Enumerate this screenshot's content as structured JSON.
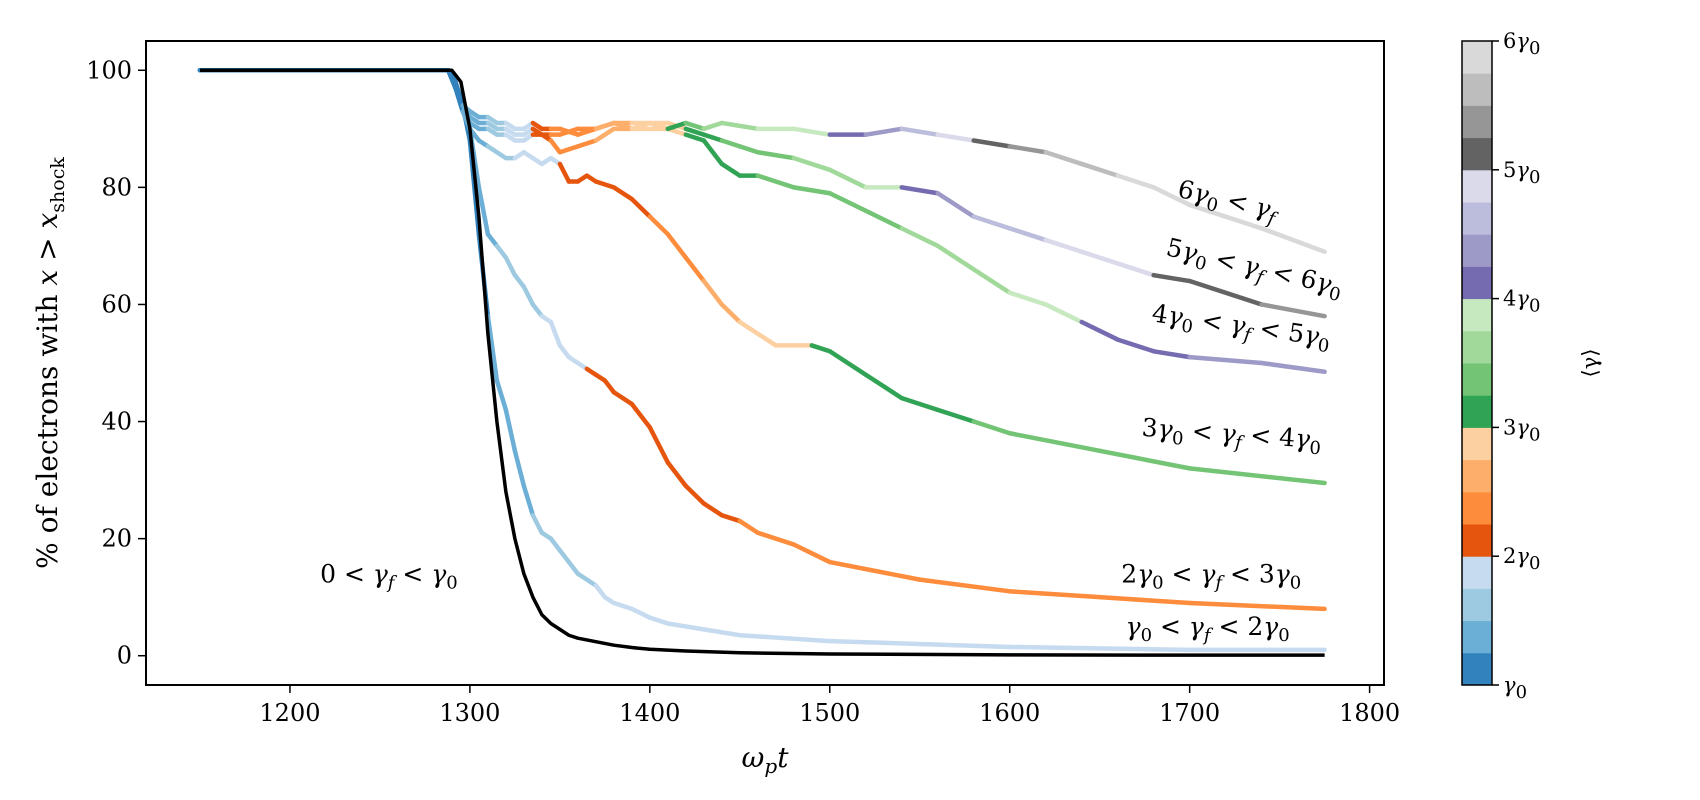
{
  "chart_data": {
    "type": "line",
    "xlabel": "ωₚt",
    "ylabel": "% of electrons with x > xₛₕₒ꜀ₖ",
    "xlim": [
      1120,
      1808
    ],
    "ylim": [
      -5,
      105
    ],
    "xticks": [
      1200,
      1300,
      1400,
      1500,
      1600,
      1700,
      1800
    ],
    "yticks": [
      0,
      20,
      40,
      60,
      80,
      100
    ],
    "grid": false,
    "colorbar": {
      "label": "⟨γ⟩",
      "range": [
        1,
        6
      ],
      "ticks": [
        {
          "value": 1,
          "label": "γ₀"
        },
        {
          "value": 2,
          "label": "2γ₀"
        },
        {
          "value": 3,
          "label": "3γ₀"
        },
        {
          "value": 4,
          "label": "4γ₀"
        },
        {
          "value": 5,
          "label": "5γ₀"
        },
        {
          "value": 6,
          "label": "6γ₀"
        }
      ],
      "colors": [
        "#3182bd",
        "#6baed6",
        "#9ecae1",
        "#c6dbef",
        "#e6550d",
        "#fd8d3c",
        "#fdae6b",
        "#fdd0a2",
        "#31a354",
        "#74c476",
        "#a1d99b",
        "#c7e9c0",
        "#756bb1",
        "#9e9ac8",
        "#bcbddc",
        "#dadaeb",
        "#636363",
        "#969696",
        "#bdbdbd",
        "#d9d9d9"
      ]
    },
    "series": [
      {
        "name": "0 < γf < γ₀",
        "color": "#000000",
        "x": [
          1150,
          1290,
          1295,
          1300,
          1305,
          1310,
          1315,
          1320,
          1325,
          1330,
          1335,
          1340,
          1345,
          1350,
          1355,
          1360,
          1370,
          1380,
          1390,
          1400,
          1420,
          1450,
          1500,
          1600,
          1700,
          1775
        ],
        "y": [
          100,
          100,
          98,
          90,
          75,
          55,
          40,
          28,
          20,
          14,
          10,
          7,
          5.5,
          4.5,
          3.5,
          3,
          2.4,
          1.8,
          1.4,
          1.1,
          0.8,
          0.5,
          0.3,
          0.15,
          0.1,
          0.1
        ]
      },
      {
        "name": "γ₀ < γf < 2γ₀",
        "x": [
          1150,
          1288,
          1292,
          1296,
          1300,
          1305,
          1310,
          1315,
          1320,
          1325,
          1330,
          1335,
          1340,
          1345,
          1350,
          1355,
          1360,
          1370,
          1375,
          1380,
          1390,
          1400,
          1410,
          1420,
          1430,
          1450,
          1500,
          1600,
          1700,
          1775
        ],
        "y": [
          100,
          100,
          98,
          94,
          88,
          72,
          58,
          47,
          42,
          35,
          29,
          24,
          21,
          20,
          18,
          16,
          14,
          12,
          10,
          9,
          8,
          6.5,
          5.5,
          5,
          4.5,
          3.5,
          2.5,
          1.5,
          1,
          1
        ],
        "gamma": [
          1.0,
          1.0,
          1.05,
          1.1,
          1.15,
          1.2,
          1.25,
          1.3,
          1.35,
          1.4,
          1.45,
          1.5,
          1.55,
          1.6,
          1.65,
          1.7,
          1.7,
          1.75,
          1.75,
          1.75,
          1.75,
          1.8,
          1.8,
          1.8,
          1.8,
          1.8,
          1.8,
          1.8,
          1.8,
          1.8
        ]
      },
      {
        "name": "2γ₀ < γf < 3γ₀",
        "x": [
          1150,
          1288,
          1292,
          1296,
          1300,
          1305,
          1310,
          1315,
          1320,
          1325,
          1330,
          1335,
          1340,
          1345,
          1350,
          1355,
          1360,
          1365,
          1370,
          1375,
          1380,
          1385,
          1390,
          1395,
          1400,
          1410,
          1420,
          1430,
          1440,
          1450,
          1460,
          1480,
          1500,
          1550,
          1600,
          1650,
          1700,
          1775
        ],
        "y": [
          100,
          100,
          98,
          94,
          90,
          80,
          72,
          70,
          68,
          65,
          63,
          60,
          58,
          57,
          53,
          51,
          50,
          49,
          48,
          47,
          45,
          44,
          43,
          41,
          39,
          33,
          29,
          26,
          24,
          23,
          21,
          19,
          16,
          13,
          11,
          10,
          9,
          8
        ],
        "gamma": [
          1.0,
          1.0,
          1.05,
          1.1,
          1.2,
          1.3,
          1.4,
          1.5,
          1.55,
          1.6,
          1.65,
          1.7,
          1.75,
          1.8,
          1.85,
          1.9,
          1.95,
          2.0,
          2.0,
          2.0,
          2.05,
          2.05,
          2.05,
          2.1,
          2.1,
          2.1,
          2.1,
          2.15,
          2.2,
          2.25,
          2.3,
          2.3,
          2.35,
          2.4,
          2.4,
          2.45,
          2.45,
          2.45
        ]
      },
      {
        "name": "3γ₀ < γf < 4γ₀",
        "x": [
          1150,
          1288,
          1292,
          1296,
          1300,
          1305,
          1310,
          1315,
          1320,
          1325,
          1330,
          1335,
          1340,
          1345,
          1350,
          1355,
          1360,
          1365,
          1370,
          1380,
          1390,
          1400,
          1410,
          1420,
          1430,
          1440,
          1450,
          1460,
          1470,
          1480,
          1490,
          1500,
          1520,
          1540,
          1560,
          1580,
          1600,
          1650,
          1700,
          1775
        ],
        "y": [
          100,
          100,
          97,
          93,
          90,
          88,
          87,
          86,
          85,
          85,
          86,
          85,
          84,
          85,
          84,
          81,
          81,
          82,
          81,
          80,
          78,
          75,
          72,
          68,
          64,
          60,
          57,
          55,
          53,
          53,
          53,
          52,
          48,
          44,
          42,
          40,
          38,
          35,
          32,
          29.5
        ],
        "gamma": [
          1.0,
          1.0,
          1.1,
          1.2,
          1.3,
          1.4,
          1.5,
          1.6,
          1.7,
          1.75,
          1.8,
          1.85,
          1.9,
          1.95,
          2.0,
          2.0,
          2.0,
          2.05,
          2.05,
          2.1,
          2.15,
          2.2,
          2.3,
          2.4,
          2.55,
          2.65,
          2.75,
          2.8,
          2.85,
          2.9,
          3.0,
          3.05,
          3.1,
          3.15,
          3.2,
          3.25,
          3.3,
          3.3,
          3.3,
          3.3
        ]
      },
      {
        "name": "4γ₀ < γf < 5γ₀",
        "x": [
          1150,
          1288,
          1292,
          1296,
          1300,
          1305,
          1310,
          1315,
          1320,
          1325,
          1330,
          1335,
          1340,
          1345,
          1350,
          1360,
          1370,
          1380,
          1390,
          1400,
          1410,
          1420,
          1430,
          1440,
          1450,
          1460,
          1480,
          1500,
          1520,
          1540,
          1560,
          1580,
          1600,
          1620,
          1640,
          1660,
          1680,
          1700,
          1740,
          1775
        ],
        "y": [
          100,
          100,
          97,
          93,
          91,
          90,
          90,
          89,
          89,
          88,
          88,
          89,
          89,
          88,
          86,
          87,
          88,
          90,
          90,
          90,
          90,
          89,
          88,
          84,
          82,
          82,
          80,
          79,
          76,
          73,
          70,
          66,
          62,
          60,
          57,
          54,
          52,
          51,
          50,
          48.5
        ],
        "gamma": [
          1.0,
          1.0,
          1.1,
          1.2,
          1.3,
          1.4,
          1.5,
          1.6,
          1.7,
          1.8,
          1.9,
          2.0,
          2.1,
          2.2,
          2.3,
          2.4,
          2.5,
          2.6,
          2.7,
          2.8,
          2.9,
          3.0,
          3.05,
          3.1,
          3.15,
          3.2,
          3.3,
          3.35,
          3.4,
          3.5,
          3.6,
          3.7,
          3.75,
          3.9,
          4.0,
          4.05,
          4.1,
          4.2,
          4.3,
          4.3
        ]
      },
      {
        "name": "5γ₀ < γf < 6γ₀",
        "x": [
          1150,
          1288,
          1292,
          1296,
          1300,
          1305,
          1310,
          1315,
          1320,
          1325,
          1330,
          1335,
          1340,
          1345,
          1350,
          1360,
          1370,
          1380,
          1390,
          1400,
          1410,
          1420,
          1430,
          1440,
          1450,
          1460,
          1480,
          1500,
          1520,
          1540,
          1560,
          1580,
          1600,
          1620,
          1640,
          1660,
          1680,
          1700,
          1740,
          1775
        ],
        "y": [
          100,
          100,
          97,
          94,
          92,
          91,
          91,
          90,
          90,
          89,
          89,
          90,
          89,
          89,
          89,
          90,
          90,
          91,
          91,
          91,
          91,
          90,
          89,
          88,
          87,
          86,
          85,
          83,
          80,
          80,
          79,
          75,
          73,
          71,
          69,
          67,
          65,
          64,
          60,
          58
        ],
        "gamma": [
          1.0,
          1.0,
          1.1,
          1.2,
          1.3,
          1.4,
          1.5,
          1.6,
          1.7,
          1.8,
          1.9,
          2.0,
          2.1,
          2.2,
          2.3,
          2.4,
          2.5,
          2.6,
          2.7,
          2.8,
          2.9,
          3.0,
          3.1,
          3.2,
          3.3,
          3.4,
          3.5,
          3.6,
          3.7,
          4.1,
          4.3,
          4.5,
          4.6,
          4.7,
          4.8,
          4.9,
          5.0,
          5.1,
          5.3,
          5.5
        ]
      },
      {
        "name": "6γ₀ < γf",
        "x": [
          1150,
          1288,
          1292,
          1296,
          1300,
          1305,
          1310,
          1315,
          1320,
          1325,
          1330,
          1335,
          1340,
          1345,
          1350,
          1360,
          1370,
          1380,
          1390,
          1400,
          1410,
          1420,
          1430,
          1440,
          1460,
          1480,
          1500,
          1520,
          1540,
          1560,
          1580,
          1600,
          1620,
          1640,
          1660,
          1680,
          1700,
          1740,
          1775
        ],
        "y": [
          100,
          100,
          97,
          94,
          93,
          92,
          92,
          91,
          91,
          90,
          90,
          91,
          90,
          90,
          90,
          89,
          90,
          91,
          90,
          91,
          90,
          91,
          90,
          91,
          90,
          90,
          89,
          89,
          90,
          89,
          88,
          87,
          86,
          84,
          82,
          80,
          77,
          73,
          69
        ],
        "gamma": [
          1.0,
          1.0,
          1.1,
          1.2,
          1.3,
          1.4,
          1.5,
          1.6,
          1.7,
          1.8,
          1.9,
          2.0,
          2.1,
          2.2,
          2.3,
          2.4,
          2.5,
          2.6,
          2.7,
          2.8,
          3.0,
          3.2,
          3.4,
          3.6,
          3.7,
          3.8,
          4.1,
          4.3,
          4.4,
          4.6,
          5.1,
          5.2,
          5.4,
          5.6,
          5.7,
          5.8,
          5.85,
          5.9,
          5.9
        ]
      }
    ],
    "annotations": [
      {
        "text": "0 < γf < γ₀",
        "x": 1255,
        "y": 12.5,
        "rotate": 0
      },
      {
        "text": "γ₀ < γf < 2γ₀",
        "x": 1710,
        "y": 3.5,
        "rotate": 0
      },
      {
        "text": "2γ₀ < γf < 3γ₀",
        "x": 1712,
        "y": 12.5,
        "rotate": 0
      },
      {
        "text": "3γ₀ < γf < 4γ₀",
        "x": 1723,
        "y": 36.5,
        "rotate": 4
      },
      {
        "text": "4γ₀ < γf < 5γ₀",
        "x": 1728,
        "y": 55,
        "rotate": 8
      },
      {
        "text": "5γ₀ < γf < 6γ₀",
        "x": 1735,
        "y": 65,
        "rotate": 13
      },
      {
        "text": "6γ₀ < γf",
        "x": 1720,
        "y": 76.5,
        "rotate": 13
      }
    ]
  }
}
